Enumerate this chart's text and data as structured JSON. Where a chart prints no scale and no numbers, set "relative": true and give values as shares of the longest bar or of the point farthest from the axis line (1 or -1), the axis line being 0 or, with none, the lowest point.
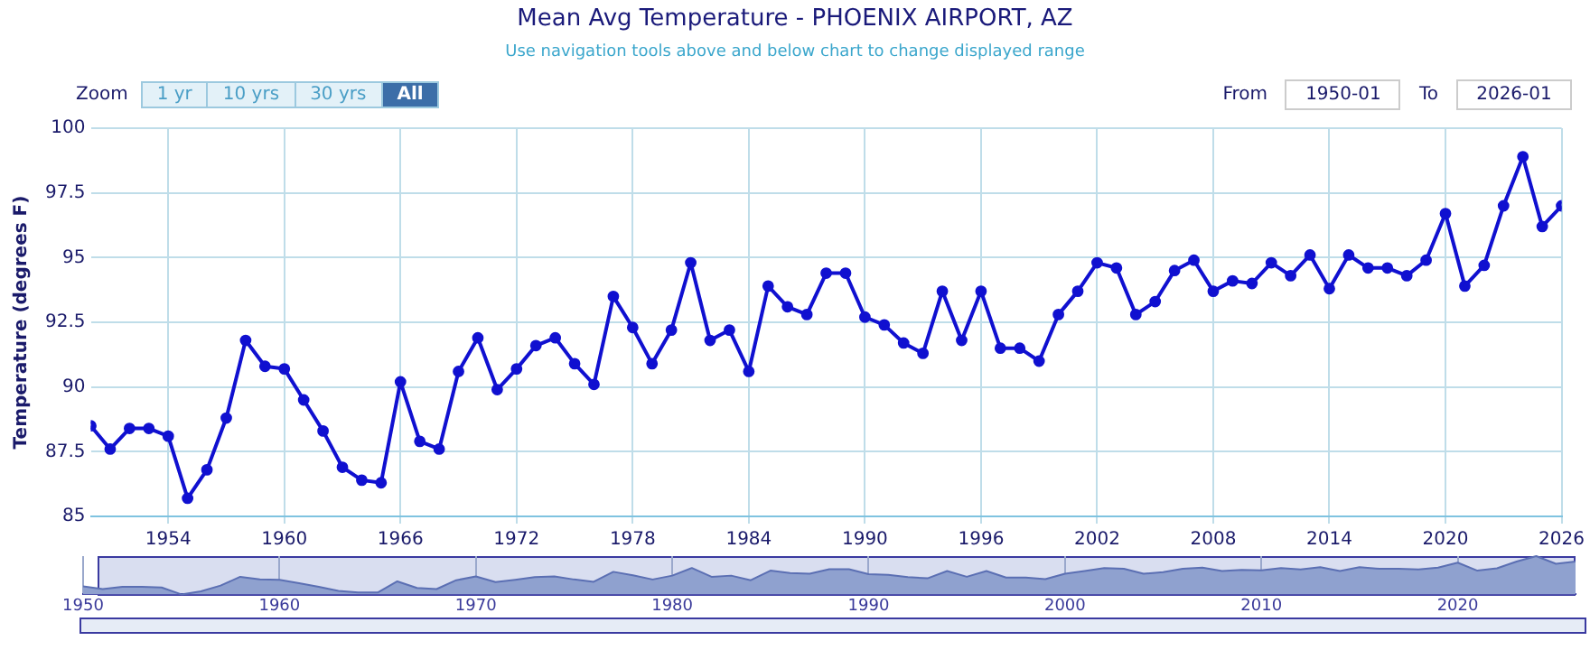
{
  "chart_data": [
    {
      "type": "line",
      "title": "Mean Avg Temperature - PHOENIX AIRPORT, AZ",
      "subtitle": "Use navigation tools above and below chart to change displayed range",
      "ylabel": "Temperature (degrees F)",
      "annotations": [
        "Zoom",
        "1 yr",
        "10 yrs",
        "30 yrs",
        "All",
        "From",
        "1950-01",
        "To",
        "2026-01"
      ],
      "x": [
        1950,
        1951,
        1952,
        1953,
        1954,
        1955,
        1956,
        1957,
        1958,
        1959,
        1960,
        1961,
        1962,
        1963,
        1964,
        1965,
        1966,
        1967,
        1968,
        1969,
        1970,
        1971,
        1972,
        1973,
        1974,
        1975,
        1976,
        1977,
        1978,
        1979,
        1980,
        1981,
        1982,
        1983,
        1984,
        1985,
        1986,
        1987,
        1988,
        1989,
        1990,
        1991,
        1992,
        1993,
        1994,
        1995,
        1996,
        1997,
        1998,
        1999,
        2000,
        2001,
        2002,
        2003,
        2004,
        2005,
        2006,
        2007,
        2008,
        2009,
        2010,
        2011,
        2012,
        2013,
        2014,
        2015,
        2016,
        2017,
        2018,
        2019,
        2020,
        2021,
        2022,
        2023,
        2024,
        2025,
        2026
      ],
      "series": [
        {
          "color": "#1010d0",
          "values": [
            88.5,
            87.6,
            88.4,
            88.4,
            88.1,
            85.7,
            86.8,
            88.8,
            91.8,
            90.8,
            90.7,
            89.5,
            88.3,
            86.9,
            86.4,
            86.3,
            90.2,
            87.9,
            87.6,
            90.6,
            91.9,
            89.9,
            90.7,
            91.6,
            91.9,
            90.9,
            90.1,
            93.5,
            92.3,
            90.9,
            92.2,
            94.8,
            91.8,
            92.2,
            90.6,
            93.9,
            93.1,
            92.8,
            94.4,
            94.4,
            92.7,
            92.4,
            91.7,
            91.3,
            93.7,
            91.8,
            93.7,
            91.5,
            91.5,
            91.0,
            92.8,
            93.7,
            94.8,
            94.6,
            92.8,
            93.3,
            94.5,
            94.9,
            93.7,
            94.1,
            94.0,
            94.8,
            94.3,
            95.1,
            93.8,
            95.1,
            94.6,
            94.6,
            94.3,
            94.9,
            96.7,
            93.9,
            94.7,
            97.0,
            98.9,
            96.2,
            97.0
          ]
        }
      ],
      "xlim": [
        1950,
        2026
      ],
      "xticks": [
        1954,
        1960,
        1966,
        1972,
        1978,
        1984,
        1990,
        1996,
        2002,
        2008,
        2014,
        2020,
        2026
      ],
      "ylim": [
        85,
        100
      ],
      "yticks": [
        85,
        87.5,
        90,
        92.5,
        95,
        97.5,
        100
      ],
      "grid": true,
      "legend": false,
      "marker": "circle",
      "line_style": "solid"
    },
    {
      "type": "area",
      "x": [
        1950,
        1951,
        1952,
        1953,
        1954,
        1955,
        1956,
        1957,
        1958,
        1959,
        1960,
        1961,
        1962,
        1963,
        1964,
        1965,
        1966,
        1967,
        1968,
        1969,
        1970,
        1971,
        1972,
        1973,
        1974,
        1975,
        1976,
        1977,
        1978,
        1979,
        1980,
        1981,
        1982,
        1983,
        1984,
        1985,
        1986,
        1987,
        1988,
        1989,
        1990,
        1991,
        1992,
        1993,
        1994,
        1995,
        1996,
        1997,
        1998,
        1999,
        2000,
        2001,
        2002,
        2003,
        2004,
        2005,
        2006,
        2007,
        2008,
        2009,
        2010,
        2011,
        2012,
        2013,
        2014,
        2015,
        2016,
        2017,
        2018,
        2019,
        2020,
        2021,
        2022,
        2023,
        2024,
        2025,
        2026
      ],
      "series": [
        {
          "color": "#8fa1cf",
          "values": [
            0.21,
            0.14,
            0.2,
            0.2,
            0.18,
            0,
            0.08,
            0.23,
            0.46,
            0.39,
            0.38,
            0.29,
            0.2,
            0.09,
            0.05,
            0.05,
            0.34,
            0.17,
            0.14,
            0.37,
            0.47,
            0.32,
            0.38,
            0.45,
            0.47,
            0.39,
            0.33,
            0.59,
            0.5,
            0.39,
            0.49,
            0.69,
            0.46,
            0.49,
            0.37,
            0.62,
            0.56,
            0.54,
            0.66,
            0.66,
            0.53,
            0.51,
            0.45,
            0.42,
            0.61,
            0.46,
            0.61,
            0.44,
            0.44,
            0.4,
            0.54,
            0.61,
            0.69,
            0.67,
            0.54,
            0.58,
            0.67,
            0.7,
            0.61,
            0.64,
            0.63,
            0.69,
            0.65,
            0.71,
            0.61,
            0.71,
            0.67,
            0.67,
            0.65,
            0.7,
            0.83,
            0.62,
            0.68,
            0.86,
            1,
            0.8,
            0.86
          ]
        }
      ],
      "xlim": [
        1950,
        2026
      ],
      "xticks": [
        1950,
        1960,
        1970,
        1980,
        1990,
        2000,
        2010,
        2020
      ],
      "relative": true,
      "tick_labels": "x",
      "grid": "x",
      "legend": false,
      "marker": "none"
    }
  ]
}
